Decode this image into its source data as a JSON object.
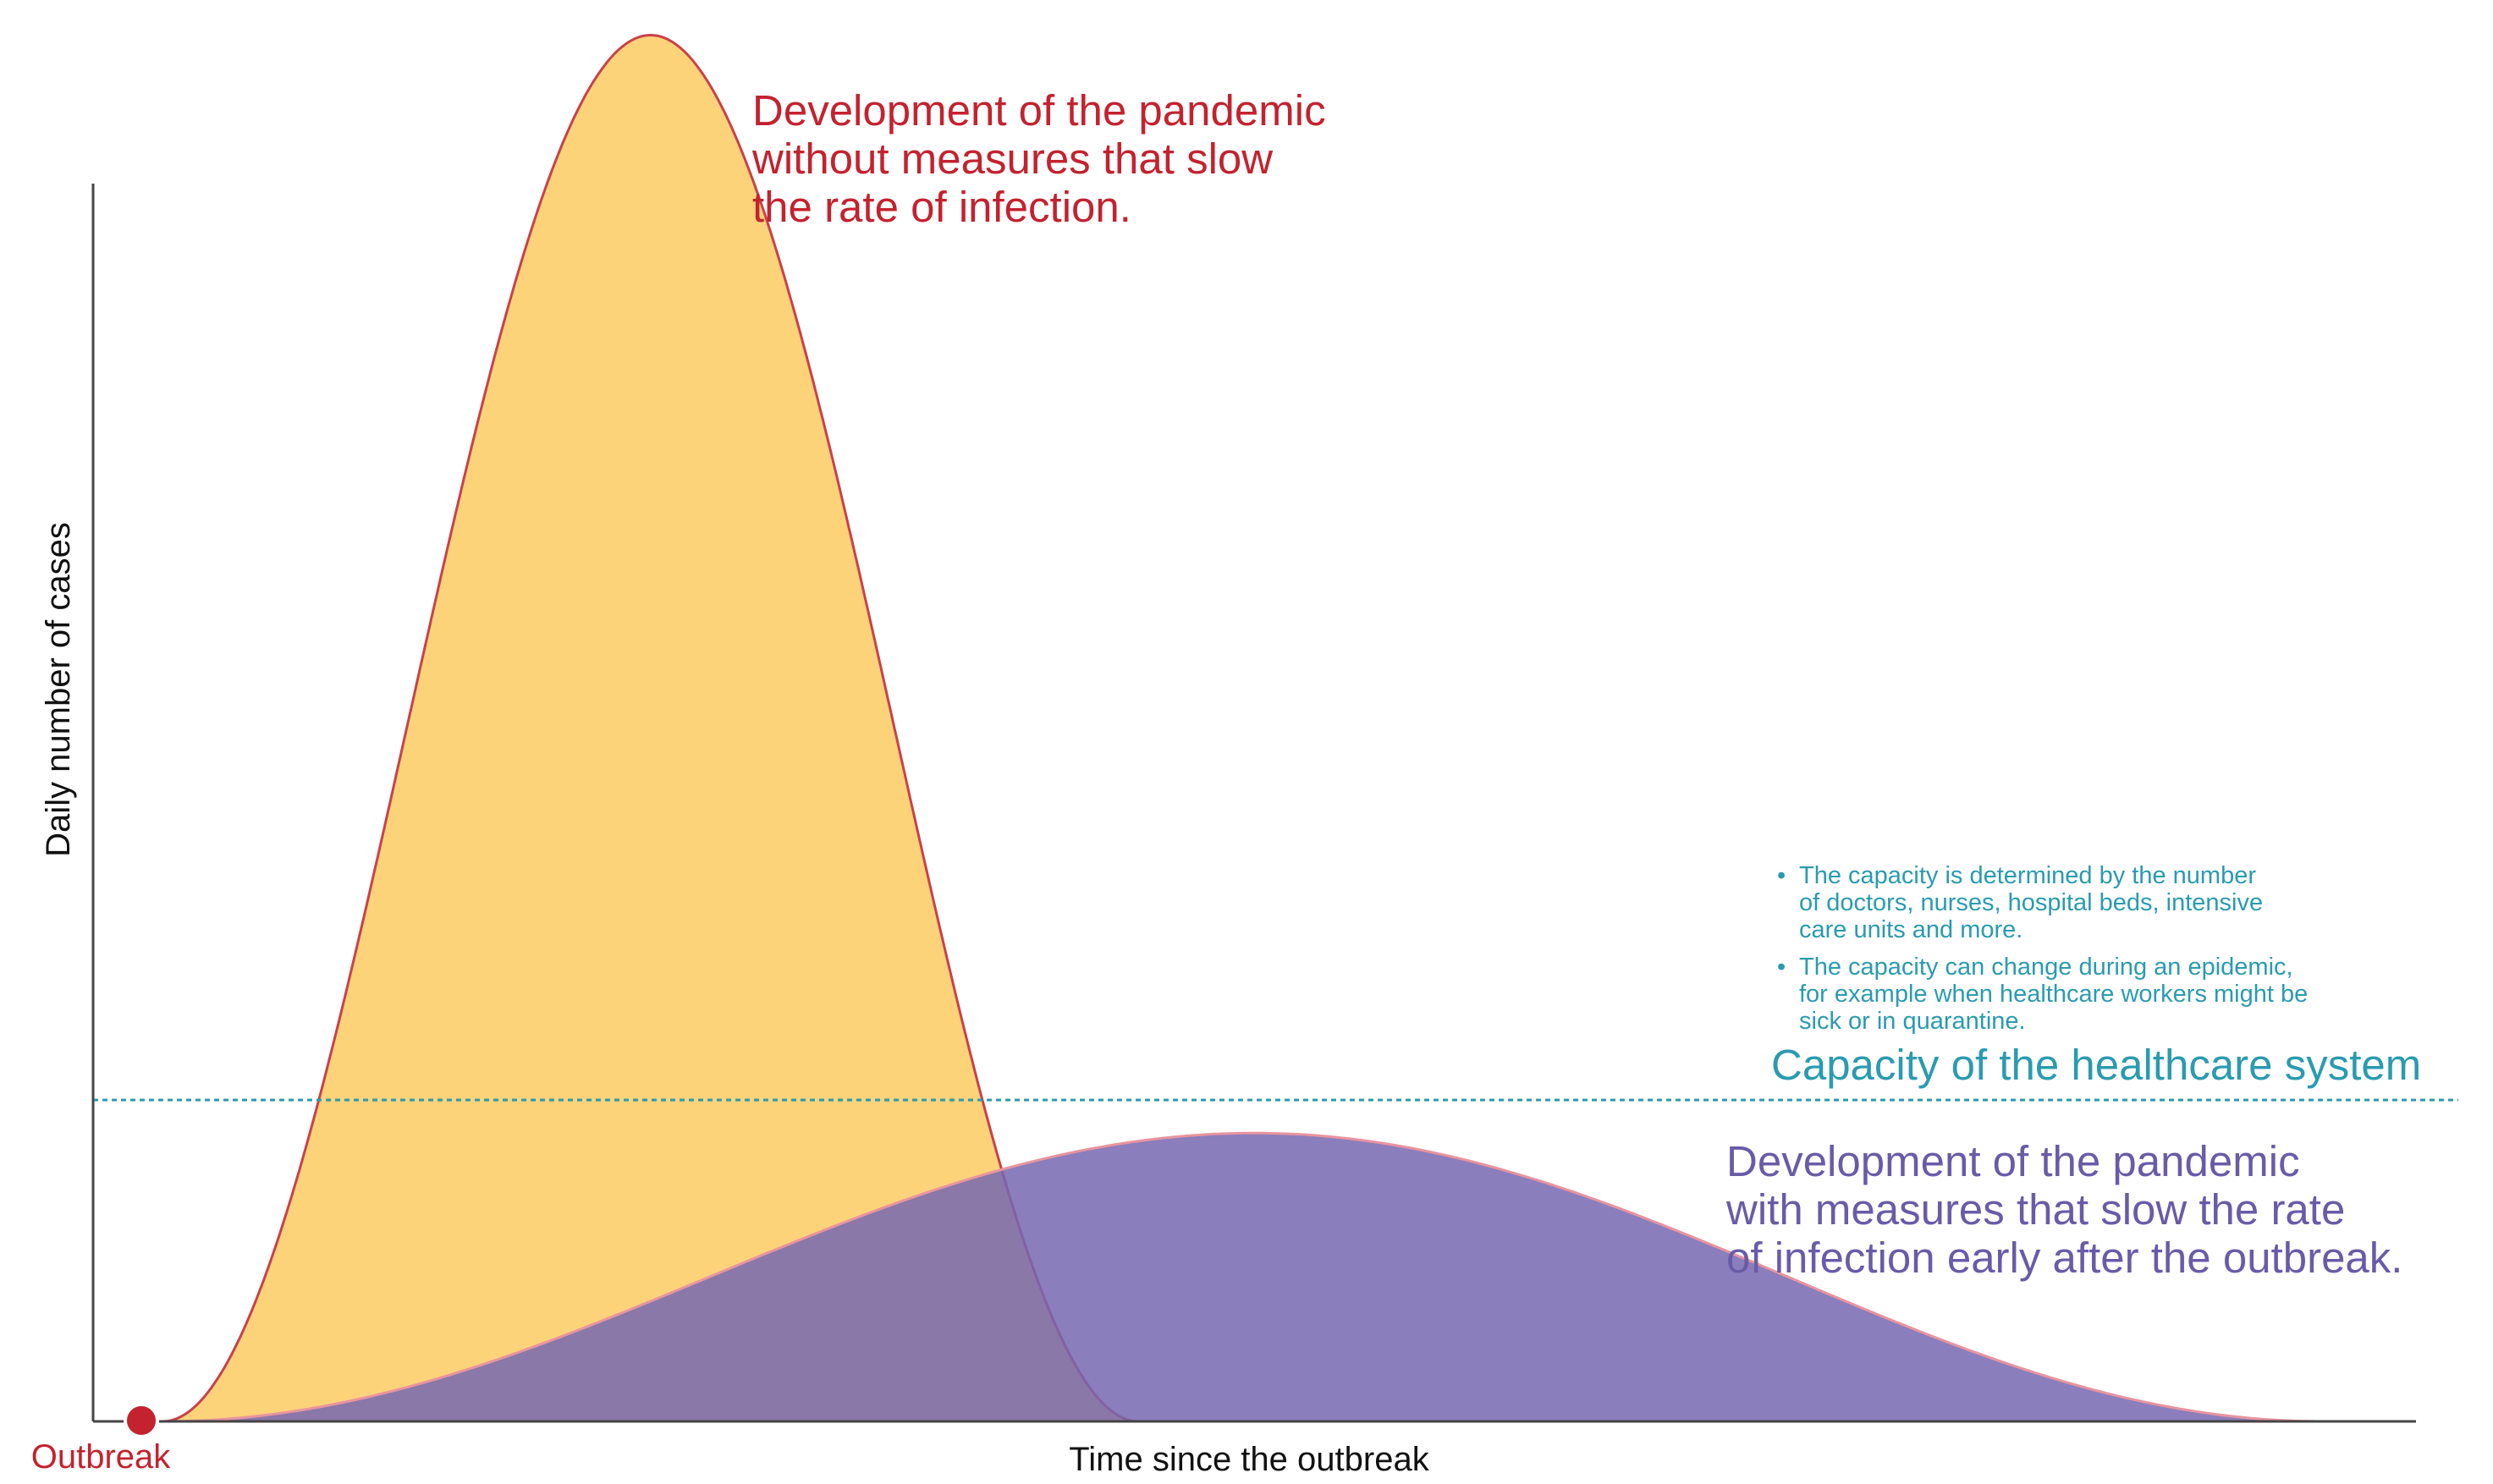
{
  "colors": {
    "axis": "#444444",
    "no_measures_fill": "#fdd379",
    "no_measures_stroke": "#c9414a",
    "with_measures_fill": "#7567b2",
    "with_measures_stroke": "#e8949f",
    "capacity_line": "#2a9bb0",
    "outbreak_marker": "#c4222f"
  },
  "labels": {
    "y_axis": "Daily number of cases",
    "x_axis": "Time since the outbreak",
    "outbreak": "Outbreak",
    "capacity": "Capacity of the healthcare system",
    "no_measures": [
      "Development of the pandemic",
      "without measures that slow",
      "the rate of infection."
    ],
    "with_measures": [
      "Development of the pandemic",
      "with measures that slow the rate",
      "of infection early after the outbreak."
    ],
    "capacity_notes": [
      {
        "bullet": "•",
        "lines": [
          "The capacity is determined by the number",
          "of doctors, nurses, hospital beds, intensive",
          "care units and more."
        ]
      },
      {
        "bullet": "•",
        "lines": [
          "The capacity can change during an epidemic,",
          "for example when healthcare workers might be",
          "sick or in quarantine."
        ]
      }
    ]
  },
  "chart_data": {
    "type": "area",
    "grid": false,
    "series": [
      {
        "key": "no_measures",
        "shape": "bell curve",
        "start": 0.03,
        "peak_time": 0.24,
        "end": 0.45,
        "peak_value": 1.13
      },
      {
        "key": "with_measures",
        "shape": "bell curve",
        "start": 0.03,
        "peak_time": 0.5,
        "end": 0.96,
        "peak_value": 0.235
      }
    ],
    "capacity_level": 0.262
  }
}
